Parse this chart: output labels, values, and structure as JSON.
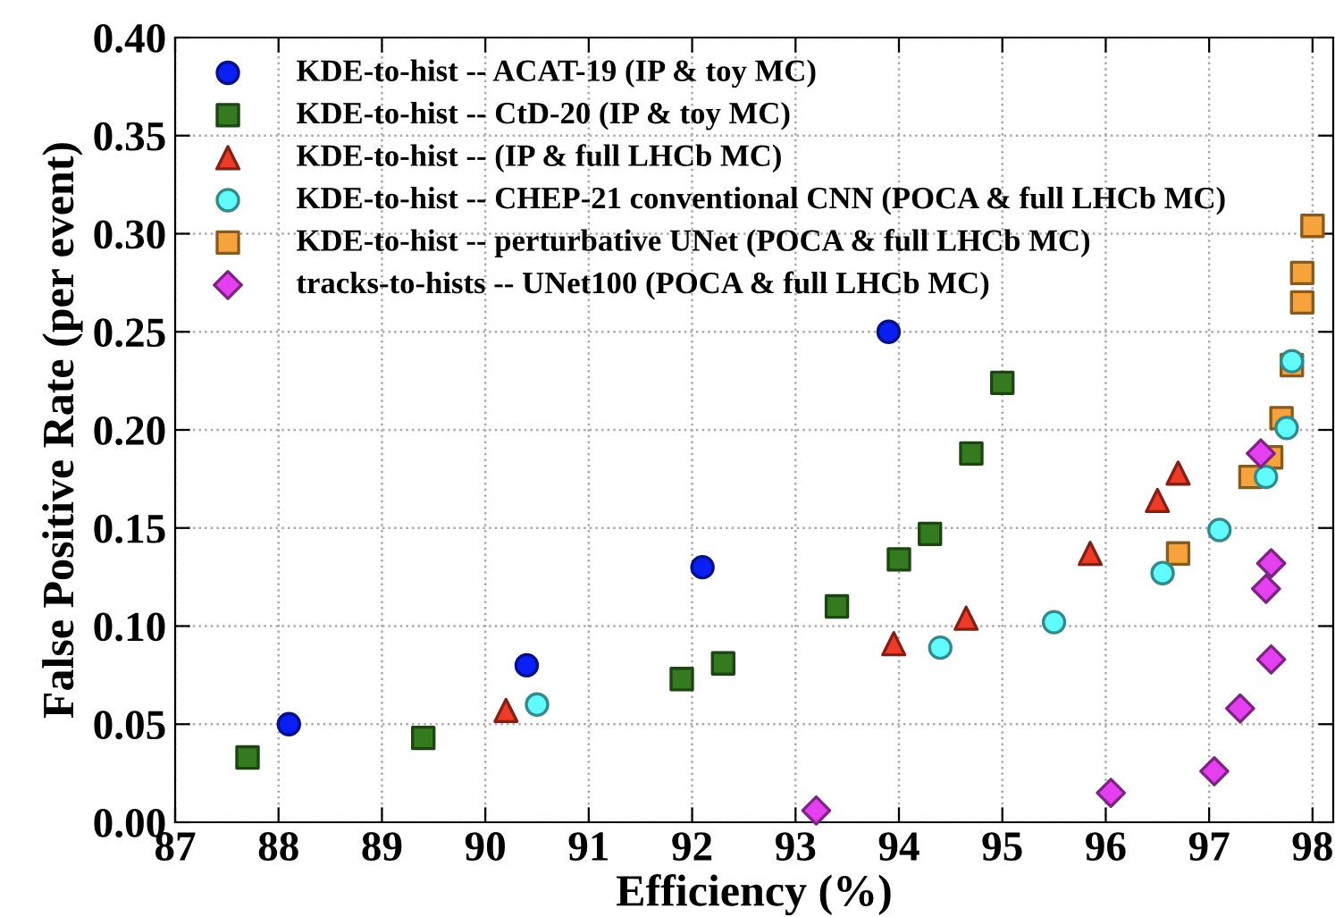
{
  "chart_data": {
    "type": "scatter",
    "xlabel": "Efficiency (%)",
    "ylabel": "False Positive Rate (per event)",
    "xlim": [
      87,
      98.2
    ],
    "xticks": [
      87,
      88,
      89,
      90,
      91,
      92,
      93,
      94,
      95,
      96,
      97,
      98
    ],
    "ylim": [
      0,
      0.4
    ],
    "yticks": [
      {
        "value": 0,
        "label": "0.00"
      },
      {
        "value": 0.05,
        "label": "0.05"
      },
      {
        "value": 0.1,
        "label": "0.10"
      },
      {
        "value": 0.15,
        "label": "0.15"
      },
      {
        "value": 0.2,
        "label": "0.20"
      },
      {
        "value": 0.25,
        "label": "0.25"
      },
      {
        "value": 0.3,
        "label": "0.30"
      },
      {
        "value": 0.35,
        "label": "0.35"
      },
      {
        "value": 0.4,
        "label": "0.40"
      }
    ],
    "grid": true,
    "legend": "top left",
    "series": [
      {
        "name": "KDE-to-hist -- ACAT-19 (IP & toy MC)",
        "color": "#0a1ff5",
        "marker": "circle",
        "x": [
          88.1,
          90.4,
          92.1,
          93.9
        ],
        "values": [
          0.05,
          0.08,
          0.13,
          0.25
        ]
      },
      {
        "name": "KDE-to-hist -- CtD-20 (IP & toy MC)",
        "color": "#347b20",
        "marker": "square",
        "x": [
          87.7,
          89.4,
          91.9,
          92.3,
          93.4,
          94.0,
          94.3,
          94.7,
          95.0
        ],
        "values": [
          0.033,
          0.043,
          0.073,
          0.081,
          0.11,
          0.134,
          0.147,
          0.188,
          0.224
        ]
      },
      {
        "name": "KDE-to-hist -- (IP & full LHCb MC)",
        "color": "#ee3a26",
        "marker": "triangle",
        "x": [
          90.2,
          93.95,
          94.65,
          95.85,
          96.5,
          96.7
        ],
        "values": [
          0.057,
          0.091,
          0.104,
          0.137,
          0.164,
          0.178
        ]
      },
      {
        "name": "KDE-to-hist -- CHEP-21 conventional CNN (POCA & full LHCb MC)",
        "color": "#5ffbfd",
        "marker": "circle",
        "x": [
          90.5,
          94.4,
          95.5,
          96.55,
          97.1,
          97.55,
          97.75,
          97.8
        ],
        "values": [
          0.06,
          0.089,
          0.102,
          0.127,
          0.149,
          0.176,
          0.201,
          0.235
        ]
      },
      {
        "name": "KDE-to-hist -- perturbative UNet (POCA & full LHCb MC)",
        "color": "#f5a33a",
        "marker": "square",
        "x": [
          96.7,
          97.4,
          97.6,
          97.7,
          97.8,
          97.9,
          97.9,
          98.0
        ],
        "values": [
          0.137,
          0.176,
          0.186,
          0.206,
          0.233,
          0.265,
          0.28,
          0.304
        ]
      },
      {
        "name": "tracks-to-hists -- UNet100 (POCA & full LHCb MC)",
        "color": "#e540f0",
        "marker": "diamond",
        "x": [
          93.2,
          96.05,
          97.05,
          97.3,
          97.6,
          97.55,
          97.6,
          97.5
        ],
        "values": [
          0.006,
          0.015,
          0.026,
          0.058,
          0.083,
          0.119,
          0.132,
          0.188
        ]
      }
    ]
  }
}
